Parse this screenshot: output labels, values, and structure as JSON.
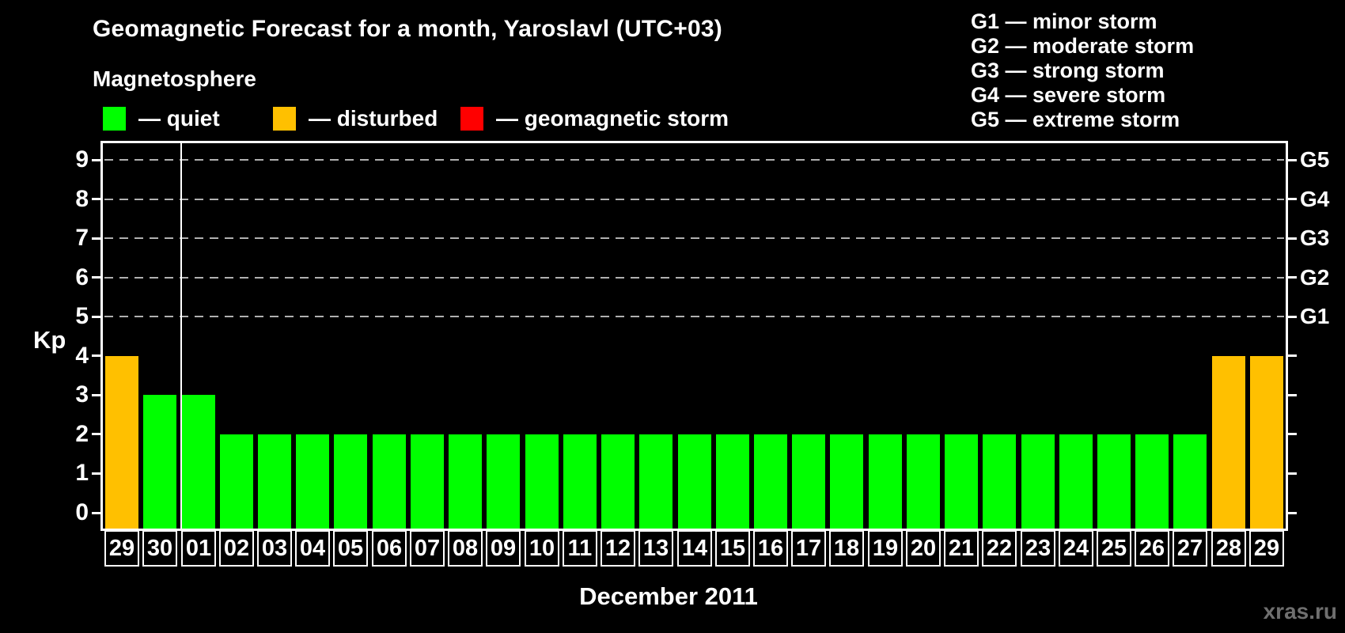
{
  "header": {
    "title": "Geomagnetic Forecast for a month, Yaroslavl (UTC+03)",
    "subtitle": "Magnetosphere"
  },
  "legend": {
    "items": [
      {
        "key": "quiet",
        "label": "— quiet",
        "color": "#00ff00"
      },
      {
        "key": "disturbed",
        "label": "— disturbed",
        "color": "#ffc000"
      },
      {
        "key": "storm",
        "label": "— geomagnetic storm",
        "color": "#ff0000"
      }
    ]
  },
  "g_scale_legend": {
    "items": [
      "G1 — minor storm",
      "G2 — moderate storm",
      "G3 — strong storm",
      "G4 — severe storm",
      "G5 — extreme storm"
    ]
  },
  "axes": {
    "y_label": "Kp",
    "y_ticks": [
      "0",
      "1",
      "2",
      "3",
      "4",
      "5",
      "6",
      "7",
      "8",
      "9"
    ],
    "right_g_ticks": [
      {
        "label": "G1",
        "kp": 5
      },
      {
        "label": "G2",
        "kp": 6
      },
      {
        "label": "G3",
        "kp": 7
      },
      {
        "label": "G4",
        "kp": 8
      },
      {
        "label": "G5",
        "kp": 9
      }
    ]
  },
  "footer": {
    "x_axis_label": "December 2011",
    "watermark": "xras.ru"
  },
  "chart_data": {
    "type": "bar",
    "title": "Geomagnetic Forecast for a month, Yaroslavl (UTC+03)",
    "xlabel": "December 2011",
    "ylabel": "Kp",
    "ylim": [
      0,
      9
    ],
    "grid_on": true,
    "gridlines_at_kp": [
      5,
      6,
      7,
      8,
      9
    ],
    "month_separator_after_index": 1,
    "categories": [
      "29",
      "30",
      "01",
      "02",
      "03",
      "04",
      "05",
      "06",
      "07",
      "08",
      "09",
      "10",
      "11",
      "12",
      "13",
      "14",
      "15",
      "16",
      "17",
      "18",
      "19",
      "20",
      "21",
      "22",
      "23",
      "24",
      "25",
      "26",
      "27",
      "28",
      "29"
    ],
    "values": [
      4,
      3,
      3,
      2,
      2,
      2,
      2,
      2,
      2,
      2,
      2,
      2,
      2,
      2,
      2,
      2,
      2,
      2,
      2,
      2,
      2,
      2,
      2,
      2,
      2,
      2,
      2,
      2,
      2,
      4,
      4
    ],
    "statuses": [
      "disturbed",
      "quiet",
      "quiet",
      "quiet",
      "quiet",
      "quiet",
      "quiet",
      "quiet",
      "quiet",
      "quiet",
      "quiet",
      "quiet",
      "quiet",
      "quiet",
      "quiet",
      "quiet",
      "quiet",
      "quiet",
      "quiet",
      "quiet",
      "quiet",
      "quiet",
      "quiet",
      "quiet",
      "quiet",
      "quiet",
      "quiet",
      "quiet",
      "quiet",
      "disturbed",
      "disturbed"
    ]
  }
}
